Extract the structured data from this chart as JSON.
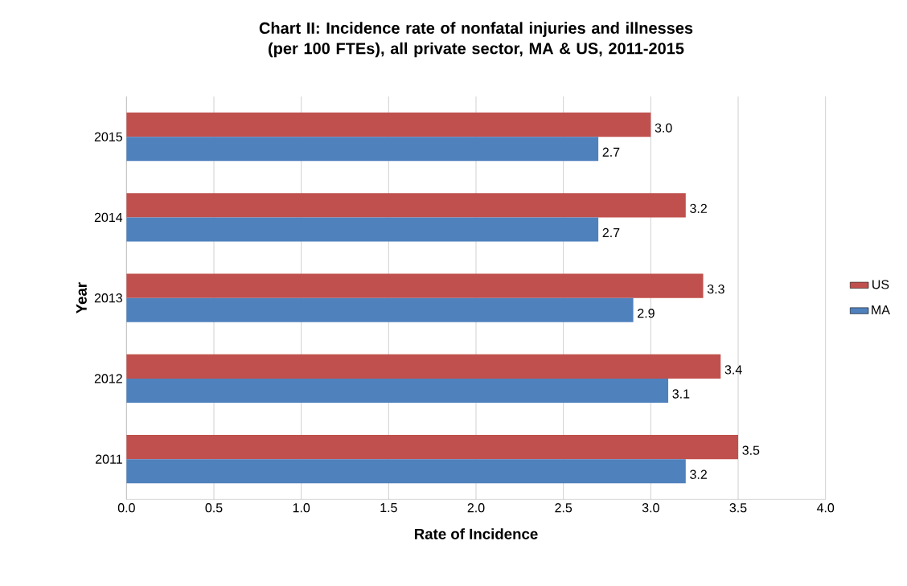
{
  "chart_data": {
    "type": "bar",
    "orientation": "horizontal",
    "title": "Chart II: Incidence rate of nonfatal injuries and illnesses (per 100 FTEs), all private sector, MA & US, 2011-2015",
    "xlabel": "Rate of Incidence",
    "ylabel": "Year",
    "categories": [
      "2015",
      "2014",
      "2013",
      "2012",
      "2011"
    ],
    "series": [
      {
        "name": "US",
        "color": "#c0504d",
        "values": [
          3.0,
          3.2,
          3.3,
          3.4,
          3.5
        ],
        "value_labels": [
          "3.0",
          "3.2",
          "3.3",
          "3.4",
          "3.5"
        ]
      },
      {
        "name": "MA",
        "color": "#4f81bd",
        "values": [
          2.7,
          2.7,
          2.9,
          3.1,
          3.2
        ],
        "value_labels": [
          "2.7",
          "2.7",
          "2.9",
          "3.1",
          "3.2"
        ]
      }
    ],
    "xlim": [
      0,
      4
    ],
    "xticks": [
      {
        "value": 0,
        "label": "0.0"
      },
      {
        "value": 0.5,
        "label": "0.5"
      },
      {
        "value": 1,
        "label": "1.0"
      },
      {
        "value": 1.5,
        "label": "1.5"
      },
      {
        "value": 2,
        "label": "2.0"
      },
      {
        "value": 2.5,
        "label": "2.5"
      },
      {
        "value": 3,
        "label": "3.0"
      },
      {
        "value": 3.5,
        "label": "3.5"
      },
      {
        "value": 4,
        "label": "4.0"
      }
    ],
    "grid": "x",
    "legend": "right"
  }
}
